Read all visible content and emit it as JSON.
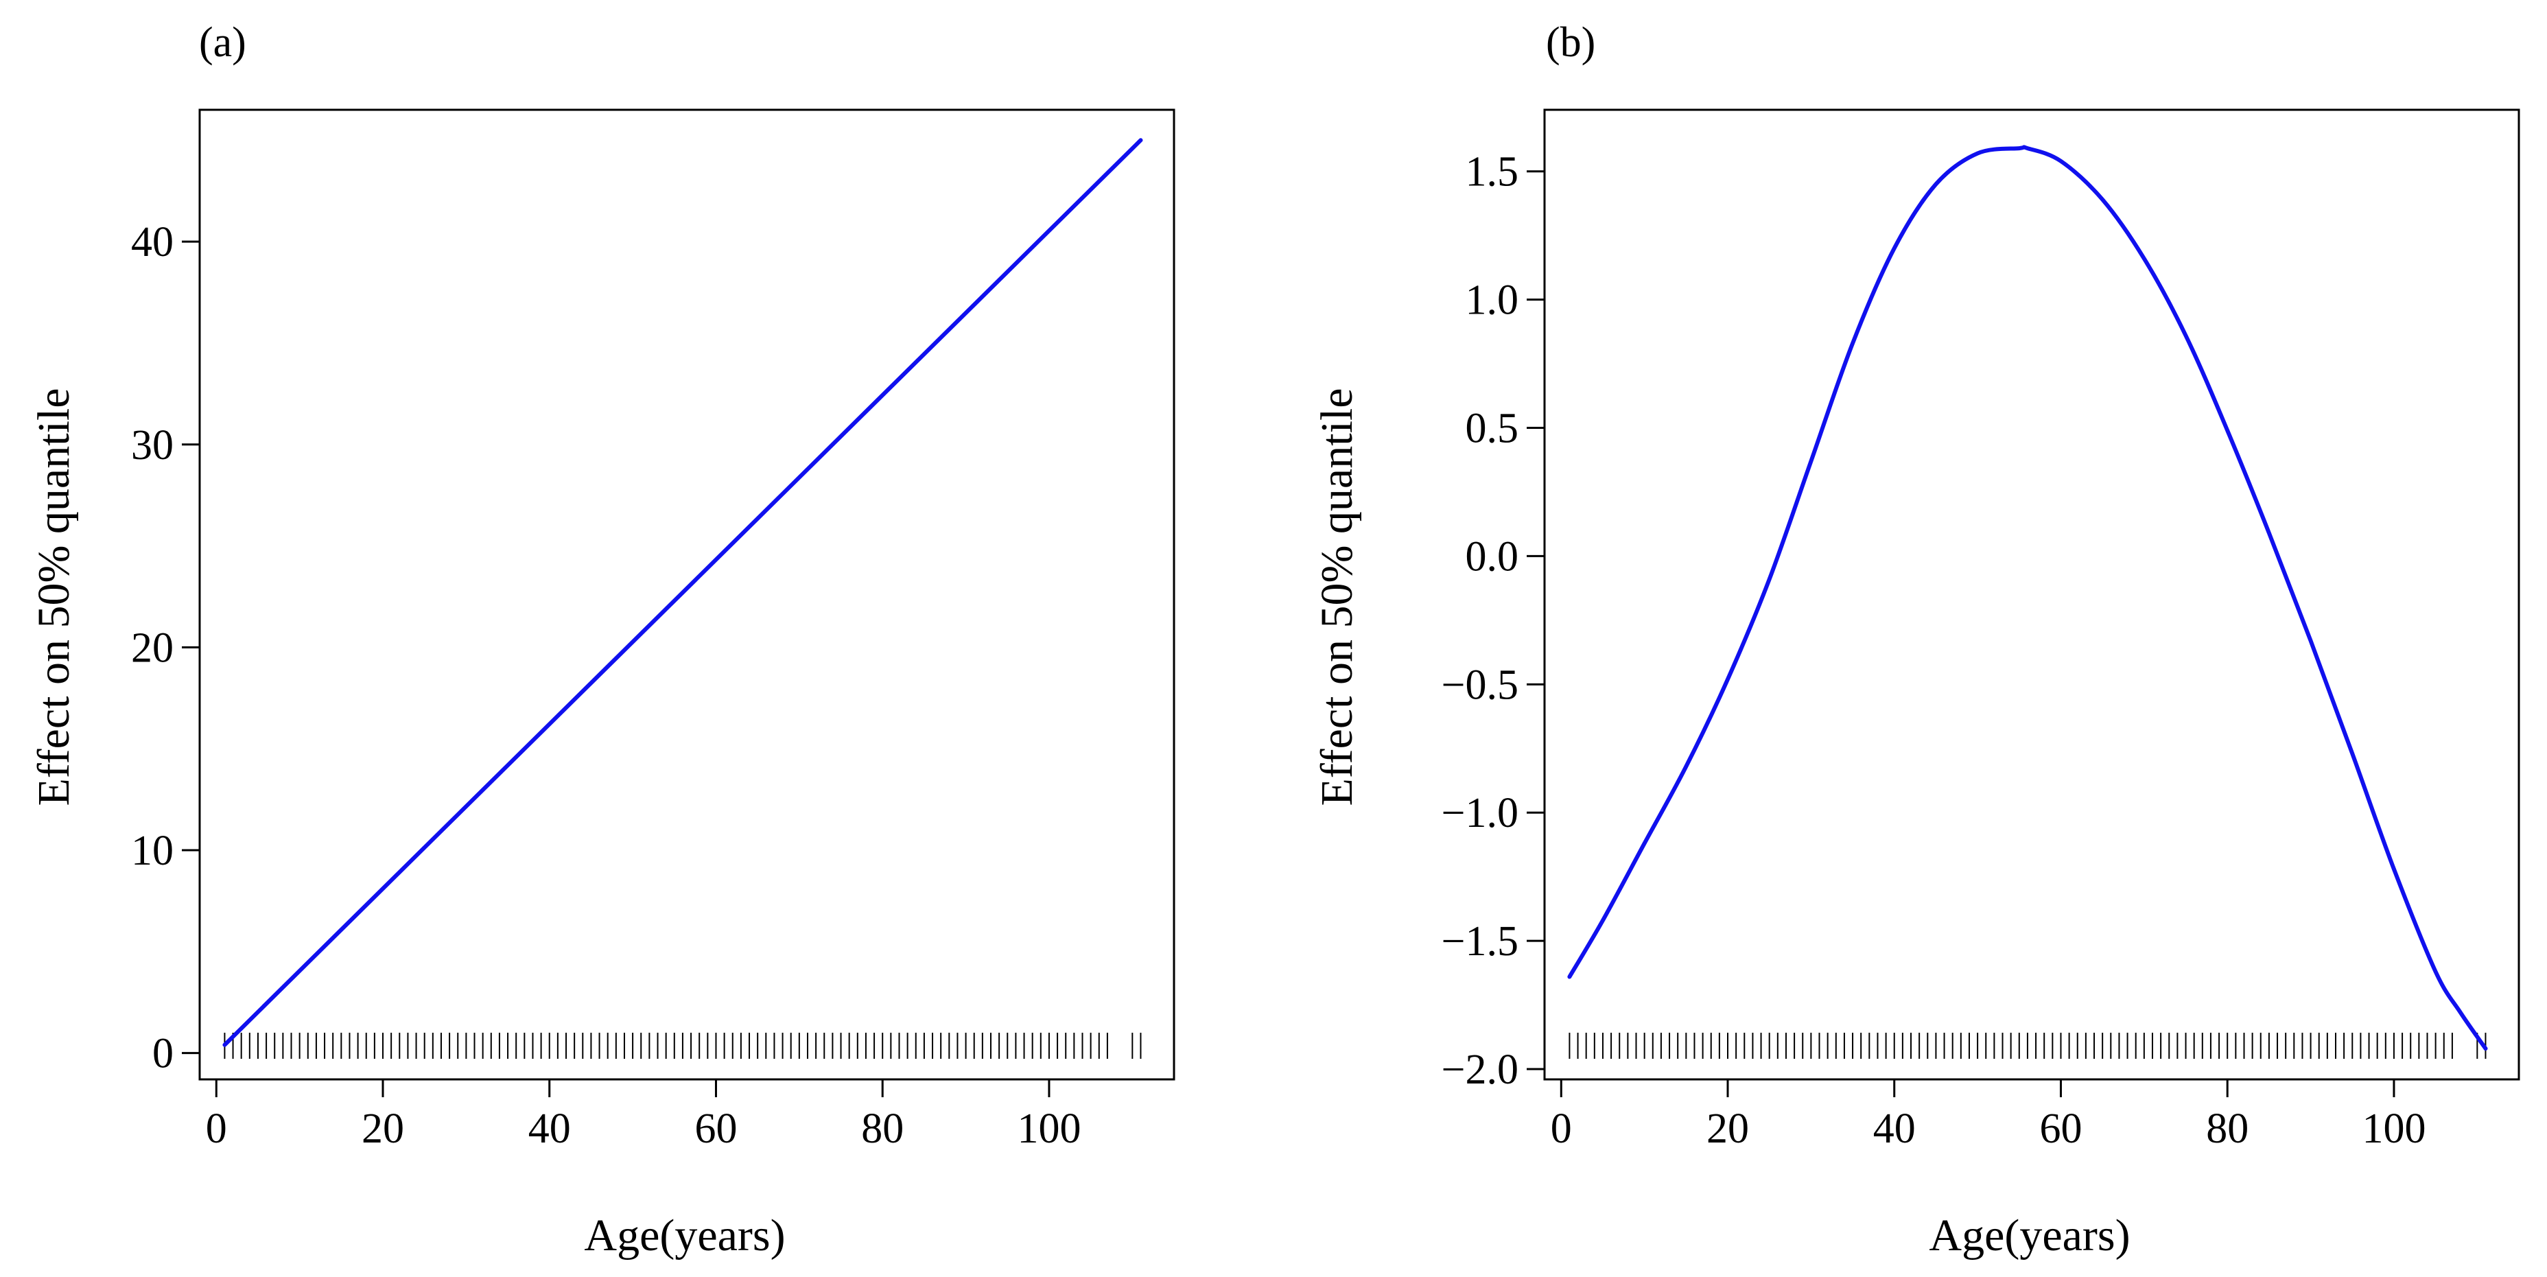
{
  "colors": {
    "line": "#1010ee",
    "axis": "#000000",
    "background": "#ffffff"
  },
  "chart_data": [
    {
      "type": "line",
      "panel_label": "(a)",
      "xlabel": "Age(years)",
      "ylabel": "Effect on 50%  quantile",
      "xlim": [
        -2,
        115
      ],
      "ylim": [
        -1.3,
        46.5
      ],
      "xticks": [
        0,
        20,
        40,
        60,
        80,
        100
      ],
      "xtick_labels": [
        "0",
        "20",
        "40",
        "60",
        "80",
        "100"
      ],
      "yticks": [
        0,
        10,
        20,
        30,
        40
      ],
      "ytick_labels": [
        "0",
        "10",
        "20",
        "30",
        "40"
      ],
      "series": [
        {
          "name": "effect",
          "x": [
            1,
            111
          ],
          "y": [
            0.4,
            45.0
          ]
        }
      ],
      "rug": [
        1,
        2,
        3,
        4,
        5,
        6,
        7,
        8,
        9,
        10,
        11,
        12,
        13,
        14,
        15,
        16,
        17,
        18,
        19,
        20,
        21,
        22,
        23,
        24,
        25,
        26,
        27,
        28,
        29,
        30,
        31,
        32,
        33,
        34,
        35,
        36,
        37,
        38,
        39,
        40,
        41,
        42,
        43,
        44,
        45,
        46,
        47,
        48,
        49,
        50,
        51,
        52,
        53,
        54,
        55,
        56,
        57,
        58,
        59,
        60,
        61,
        62,
        63,
        64,
        65,
        66,
        67,
        68,
        69,
        70,
        71,
        72,
        73,
        74,
        75,
        76,
        77,
        78,
        79,
        80,
        81,
        82,
        83,
        84,
        85,
        86,
        87,
        88,
        89,
        90,
        91,
        92,
        93,
        94,
        95,
        96,
        97,
        98,
        99,
        100,
        101,
        102,
        103,
        104,
        105,
        106,
        107,
        110,
        111
      ]
    },
    {
      "type": "line",
      "panel_label": "(b)",
      "xlabel": "Age(years)",
      "ylabel": "Effect on 50%  quantile",
      "xlim": [
        -2,
        115
      ],
      "ylim": [
        -2.04,
        1.74
      ],
      "xticks": [
        0,
        20,
        40,
        60,
        80,
        100
      ],
      "xtick_labels": [
        "0",
        "20",
        "40",
        "60",
        "80",
        "100"
      ],
      "yticks": [
        -2.0,
        -1.5,
        -1.0,
        -0.5,
        0.0,
        0.5,
        1.0,
        1.5
      ],
      "ytick_labels": [
        "−2.0",
        "−1.5",
        "−1.0",
        "−0.5",
        "0.0",
        "0.5",
        "1.0",
        "1.5"
      ],
      "series": [
        {
          "name": "effect",
          "x": [
            1,
            5,
            10,
            15,
            20,
            25,
            30,
            35,
            40,
            45,
            50,
            55,
            56,
            60,
            65,
            70,
            75,
            80,
            85,
            90,
            95,
            100,
            105,
            108,
            111
          ],
          "y": [
            -1.64,
            -1.42,
            -1.12,
            -0.82,
            -0.48,
            -0.09,
            0.37,
            0.83,
            1.2,
            1.45,
            1.57,
            1.59,
            1.59,
            1.54,
            1.39,
            1.16,
            0.86,
            0.49,
            0.09,
            -0.33,
            -0.77,
            -1.22,
            -1.62,
            -1.78,
            -1.92
          ]
        }
      ],
      "rug": [
        1,
        2,
        3,
        4,
        5,
        6,
        7,
        8,
        9,
        10,
        11,
        12,
        13,
        14,
        15,
        16,
        17,
        18,
        19,
        20,
        21,
        22,
        23,
        24,
        25,
        26,
        27,
        28,
        29,
        30,
        31,
        32,
        33,
        34,
        35,
        36,
        37,
        38,
        39,
        40,
        41,
        42,
        43,
        44,
        45,
        46,
        47,
        48,
        49,
        50,
        51,
        52,
        53,
        54,
        55,
        56,
        57,
        58,
        59,
        60,
        61,
        62,
        63,
        64,
        65,
        66,
        67,
        68,
        69,
        70,
        71,
        72,
        73,
        74,
        75,
        76,
        77,
        78,
        79,
        80,
        81,
        82,
        83,
        84,
        85,
        86,
        87,
        88,
        89,
        90,
        91,
        92,
        93,
        94,
        95,
        96,
        97,
        98,
        99,
        100,
        101,
        102,
        103,
        104,
        105,
        106,
        107,
        110,
        111
      ]
    }
  ]
}
